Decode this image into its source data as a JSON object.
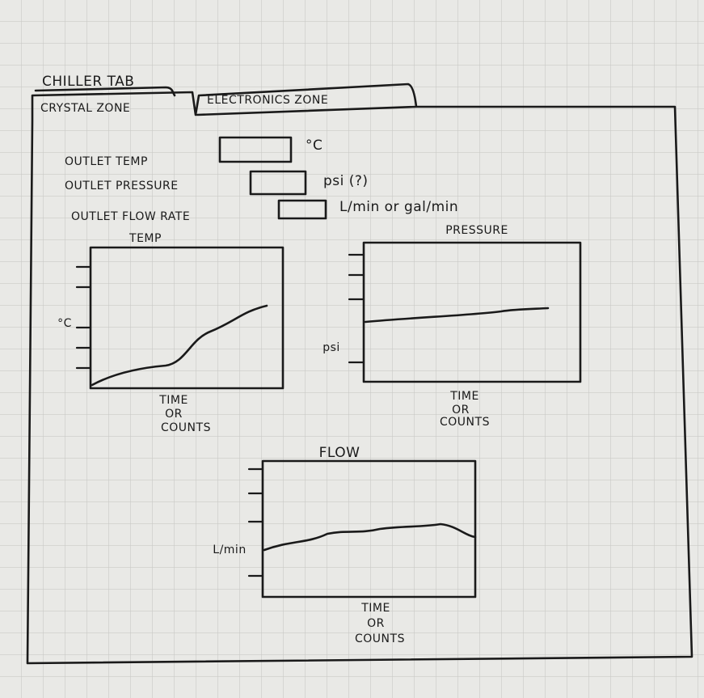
{
  "window": {
    "title": "CHILLER TAB"
  },
  "tabs": [
    "CRYSTAL ZONE",
    "ELECTRONICS ZONE"
  ],
  "fields": [
    {
      "label": "OUTLET TEMP",
      "unit": "°C"
    },
    {
      "label": "OUTLET PRESSURE",
      "unit": "psi (?)"
    },
    {
      "label": "OUTLET FLOW RATE",
      "unit": "L/min or gal/min"
    }
  ],
  "charts": [
    {
      "title": "TEMP",
      "y_label": "°C",
      "x_label": [
        "TIME",
        "OR",
        "COUNTS"
      ]
    },
    {
      "title": "PRESSURE",
      "y_label": "psi",
      "x_label": [
        "TIME",
        "OR",
        "COUNTS"
      ]
    },
    {
      "title": "FLOW",
      "y_label": "L/min",
      "x_label": [
        "TIME",
        "OR",
        "COUNTS"
      ]
    }
  ]
}
